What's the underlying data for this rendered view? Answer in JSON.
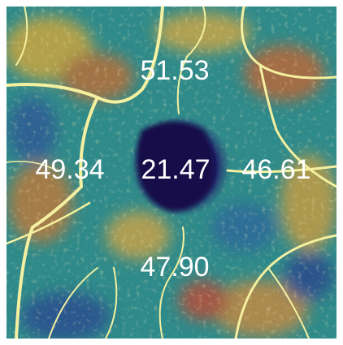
{
  "density_labels": {
    "superior": "51.53",
    "temporal": "49.34",
    "central": "21.47",
    "nasal": "46.61",
    "inferior": "47.90"
  }
}
